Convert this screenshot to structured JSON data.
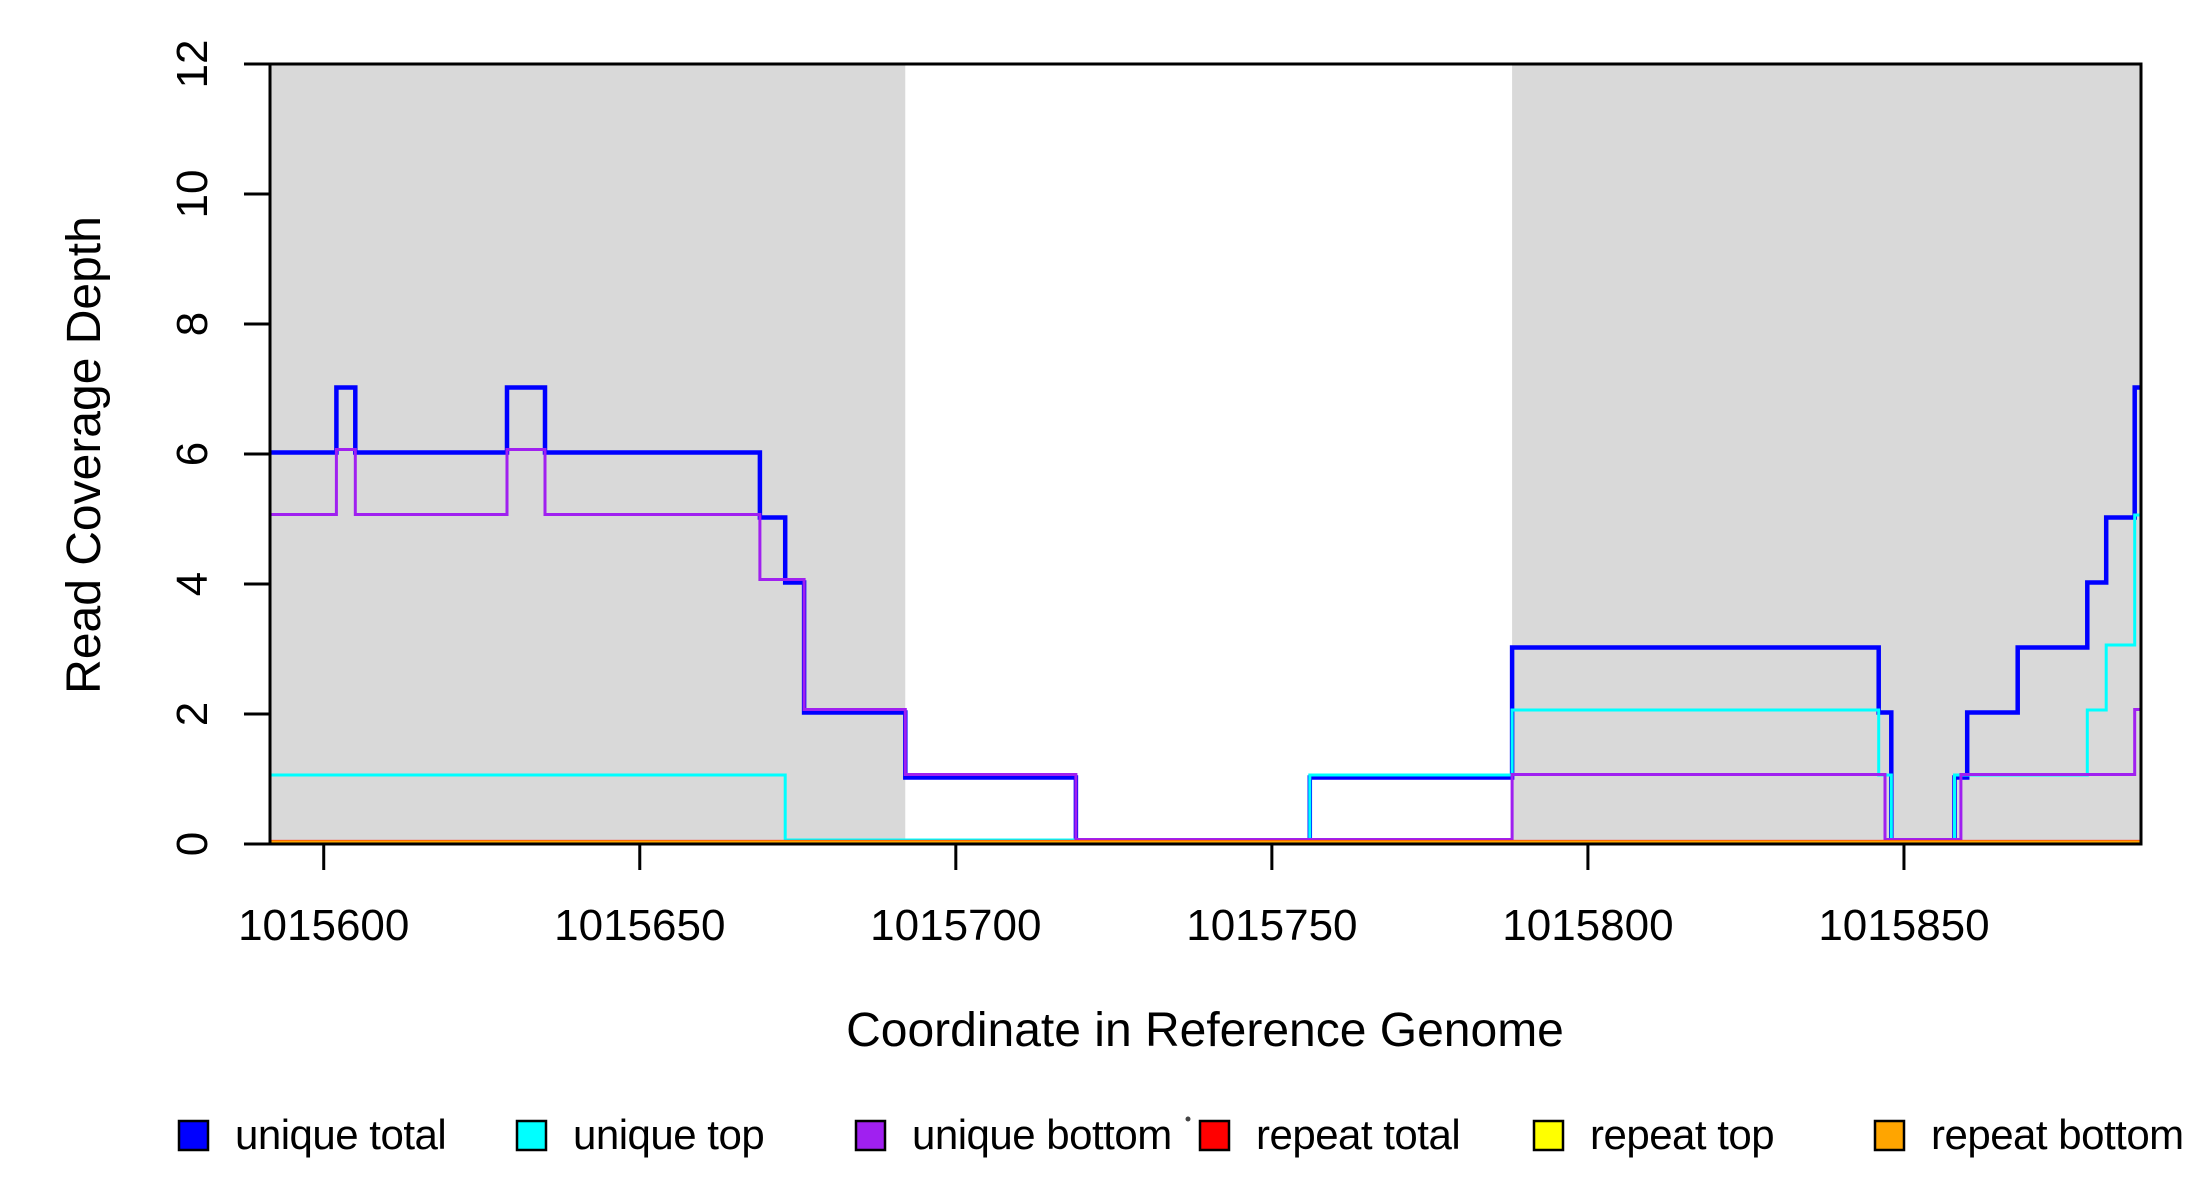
{
  "chart_data": {
    "type": "line",
    "subtype": "step",
    "title": "",
    "xlabel": "Coordinate in Reference Genome",
    "ylabel": "Read Coverage Depth",
    "xlim": [
      1015591.5,
      1015887.5
    ],
    "ylim": [
      0,
      12
    ],
    "x_ticks": [
      1015600,
      1015650,
      1015700,
      1015750,
      1015800,
      1015850
    ],
    "y_ticks": [
      0,
      2,
      4,
      6,
      8,
      10,
      12
    ],
    "grid": false,
    "legend_position": "bottom",
    "shaded_regions": [
      {
        "x0": 1015591.5,
        "x1": 1015692,
        "color": "#d9d9d9"
      },
      {
        "x0": 1015788,
        "x1": 1015887.5,
        "color": "#d9d9d9"
      }
    ],
    "series": [
      {
        "name": "unique total",
        "color": "#0000ff",
        "points": [
          [
            1015591.5,
            6
          ],
          [
            1015602,
            7
          ],
          [
            1015605,
            6
          ],
          [
            1015629,
            7
          ],
          [
            1015635,
            6
          ],
          [
            1015669,
            5
          ],
          [
            1015673,
            4
          ],
          [
            1015676,
            2
          ],
          [
            1015692,
            1
          ],
          [
            1015719,
            0
          ],
          [
            1015756,
            1
          ],
          [
            1015788,
            3
          ],
          [
            1015846,
            2
          ],
          [
            1015848,
            0
          ],
          [
            1015858,
            1
          ],
          [
            1015860,
            2
          ],
          [
            1015868,
            3
          ],
          [
            1015879,
            4
          ],
          [
            1015882,
            5
          ],
          [
            1015886.5,
            7
          ],
          [
            1015887.5,
            7
          ]
        ]
      },
      {
        "name": "unique top",
        "color": "#00ffff",
        "points": [
          [
            1015591.5,
            1
          ],
          [
            1015673,
            0
          ],
          [
            1015756,
            1
          ],
          [
            1015788,
            2
          ],
          [
            1015846,
            1
          ],
          [
            1015848,
            0
          ],
          [
            1015858,
            1
          ],
          [
            1015879,
            2
          ],
          [
            1015882,
            3
          ],
          [
            1015886.5,
            5
          ],
          [
            1015887.5,
            5
          ]
        ]
      },
      {
        "name": "unique bottom",
        "color": "#a020f0",
        "points": [
          [
            1015591.5,
            5
          ],
          [
            1015602,
            6
          ],
          [
            1015605,
            5
          ],
          [
            1015629,
            6
          ],
          [
            1015635,
            5
          ],
          [
            1015669,
            4
          ],
          [
            1015676,
            2
          ],
          [
            1015692,
            1
          ],
          [
            1015719,
            0
          ],
          [
            1015788,
            1
          ],
          [
            1015847,
            0
          ],
          [
            1015859,
            1
          ],
          [
            1015886.5,
            2
          ],
          [
            1015887.5,
            2
          ]
        ]
      },
      {
        "name": "repeat total",
        "color": "#ff0000",
        "points": [
          [
            1015591.5,
            0
          ],
          [
            1015887.5,
            0
          ]
        ]
      },
      {
        "name": "repeat top",
        "color": "#ffff00",
        "points": [
          [
            1015591.5,
            0
          ],
          [
            1015887.5,
            0
          ]
        ]
      },
      {
        "name": "repeat bottom",
        "color": "#ffa500",
        "points": [
          [
            1015591.5,
            0
          ],
          [
            1015887.5,
            0
          ]
        ]
      }
    ]
  },
  "legend": {
    "items": [
      {
        "label": "unique total",
        "color": "#0000ff"
      },
      {
        "label": "unique top",
        "color": "#00ffff"
      },
      {
        "label": "unique bottom",
        "color": "#a020f0"
      },
      {
        "label": "repeat total",
        "color": "#ff0000"
      },
      {
        "label": "repeat top",
        "color": "#ffff00"
      },
      {
        "label": "repeat bottom",
        "color": "#ffa500"
      }
    ]
  }
}
